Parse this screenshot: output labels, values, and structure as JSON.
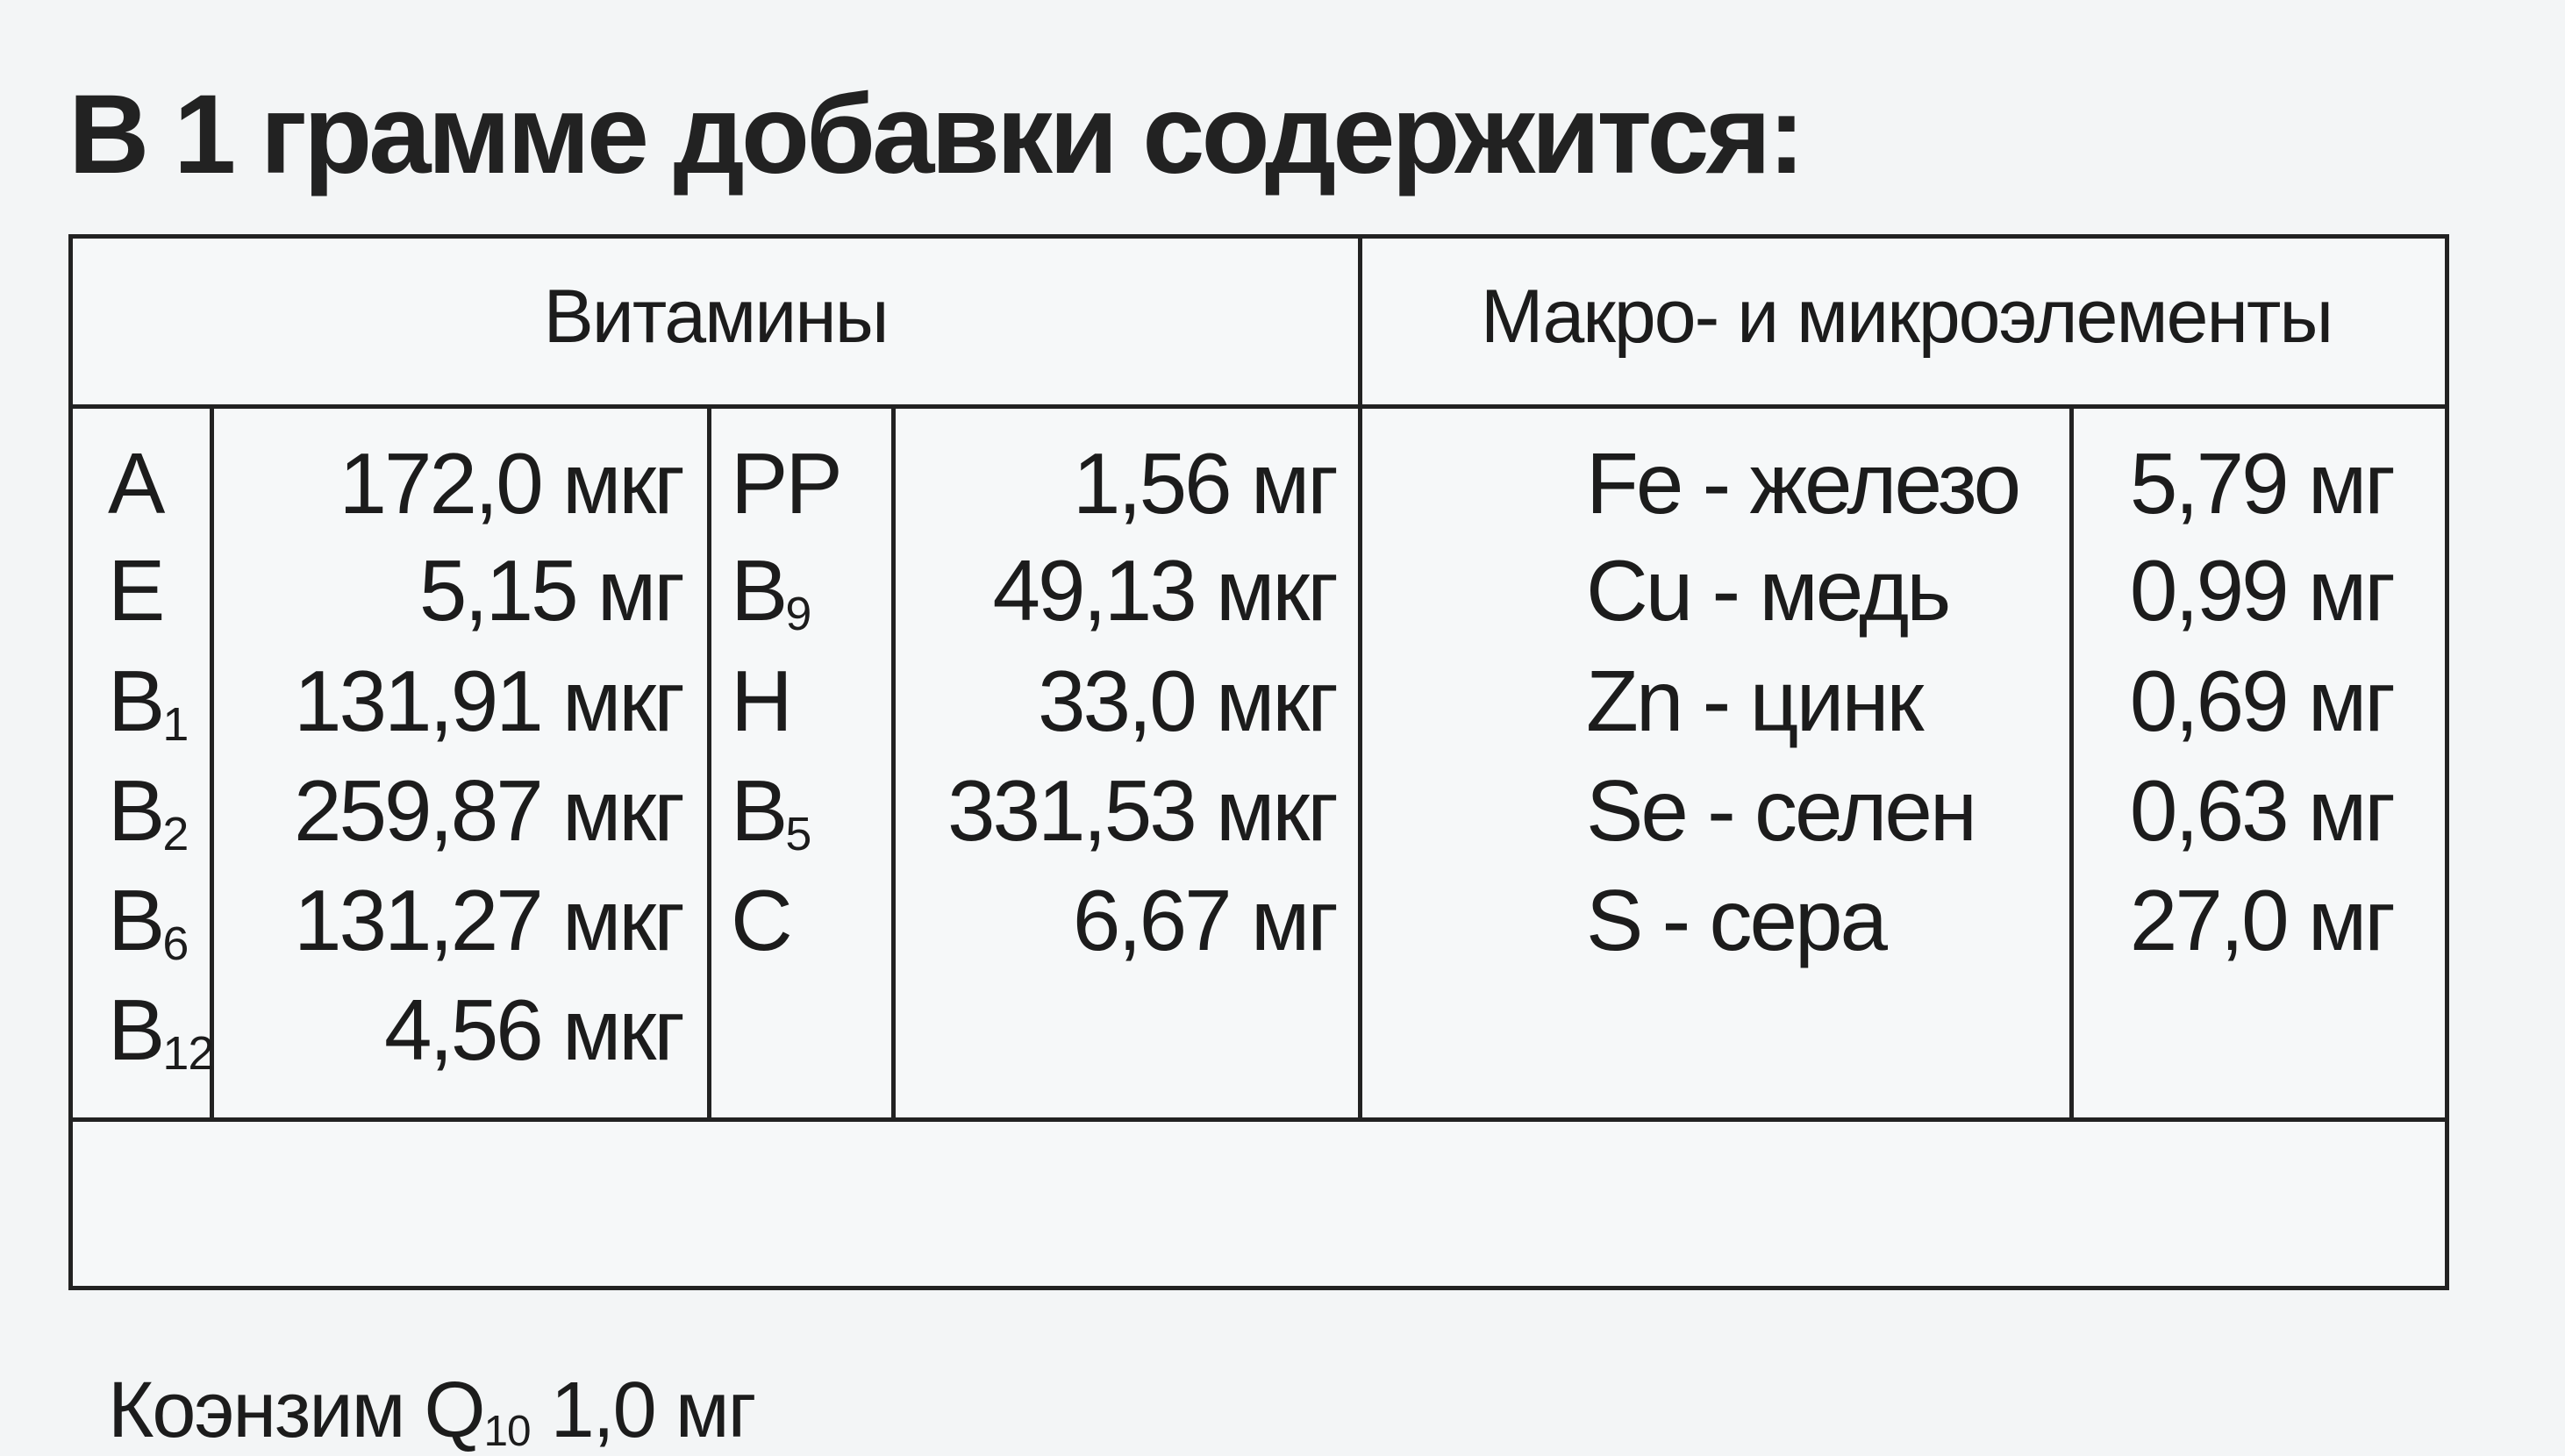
{
  "title": "В 1 грамме добавки содержится:",
  "headers": {
    "vitamins": "Витамины",
    "minerals": "Макро- и микроэлементы"
  },
  "vitamins_left": [
    {
      "name": "A",
      "sub": "",
      "value": "172,0 мкг"
    },
    {
      "name": "E",
      "sub": "",
      "value": "5,15 мг"
    },
    {
      "name": "B",
      "sub": "1",
      "value": "131,91 мкг"
    },
    {
      "name": "B",
      "sub": "2",
      "value": "259,87 мкг"
    },
    {
      "name": "B",
      "sub": "6",
      "value": "131,27 мкг"
    },
    {
      "name": "B",
      "sub": "12",
      "value": "4,56 мкг"
    }
  ],
  "vitamins_right": [
    {
      "name": "PP",
      "sub": "",
      "value": "1,56 мг"
    },
    {
      "name": "B",
      "sub": "9",
      "value": "49,13 мкг"
    },
    {
      "name": "H",
      "sub": "",
      "value": "33,0 мкг"
    },
    {
      "name": "B",
      "sub": "5",
      "value": "331,53 мкг"
    },
    {
      "name": "C",
      "sub": "",
      "value": "6,67 мг"
    }
  ],
  "minerals": [
    {
      "name": "Fe - железо",
      "value": "5,79 мг"
    },
    {
      "name": "Cu - медь",
      "value": "0,99 мг"
    },
    {
      "name": "Zn - цинк",
      "value": "0,69 мг"
    },
    {
      "name": "Se - селен",
      "value": "0,63 мг"
    },
    {
      "name": "S - сера",
      "value": "27,0 мг"
    }
  ],
  "footer": {
    "prefix": "Коэнзим Q",
    "sub": "10",
    "value": " 1,0 мг"
  }
}
